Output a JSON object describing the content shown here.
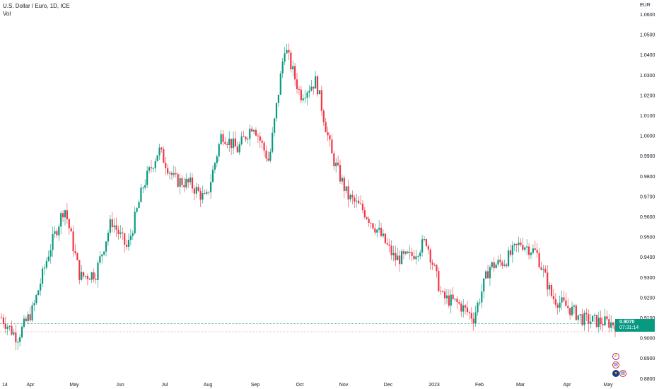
{
  "legend": {
    "title": "U.S. Dollar / Euro, 1D, ICE",
    "indicator": "Vol"
  },
  "axis": {
    "currency": "EUR"
  },
  "price_badge": {
    "price": "0.9070",
    "countdown": "07:31:14"
  },
  "colors": {
    "up": "#089981",
    "down": "#F23645",
    "grid": "#f0f3fa",
    "axis_text": "#131722"
  },
  "events": [
    {
      "icon": "lightning-icon",
      "symbol": "⚡"
    },
    {
      "icon": "us-flag-icon",
      "symbol": "▤"
    },
    {
      "icon": "eu-flag-icon",
      "symbol": "●"
    }
  ],
  "chart_data": {
    "type": "candlestick",
    "title": "U.S. Dollar / Euro, 1D, ICE",
    "ylabel": "EUR",
    "ylim": [
      0.8785,
      1.0655
    ],
    "y_ticks": [
      "1.0600",
      "1.0500",
      "1.0400",
      "1.0300",
      "1.0200",
      "1.0100",
      "1.0000",
      "0.9900",
      "0.9800",
      "0.9700",
      "0.9600",
      "0.9500",
      "0.9400",
      "0.9300",
      "0.9200",
      "0.9100",
      "0.9000",
      "0.8900",
      "0.8800"
    ],
    "x_ticks": [
      "14",
      "Apr",
      "May",
      "Jun",
      "Jul",
      "Aug",
      "Sep",
      "Oct",
      "Nov",
      "Dec",
      "2023",
      "Feb",
      "Mar",
      "Apr",
      "May"
    ],
    "last_price": 0.907,
    "reference_line": 0.903,
    "trend_anchors": [
      [
        "Mar 14",
        0.91
      ],
      [
        "Apr",
        0.9
      ],
      [
        "mid Apr",
        0.914
      ],
      [
        "May",
        0.942
      ],
      [
        "mid May",
        0.965
      ],
      [
        "late May",
        0.93
      ],
      [
        "Jun",
        0.932
      ],
      [
        "mid Jun",
        0.958
      ],
      [
        "late Jun",
        0.944
      ],
      [
        "Jul",
        0.975
      ],
      [
        "mid Jul",
        0.993
      ],
      [
        "late Jul",
        0.978
      ],
      [
        "Aug",
        0.976
      ],
      [
        "mid Aug",
        0.968
      ],
      [
        "late Aug",
        1.001
      ],
      [
        "Sep",
        0.993
      ],
      [
        "mid Sep",
        1.006
      ],
      [
        "late Sep",
        0.987
      ],
      [
        "Oct",
        1.044
      ],
      [
        "mid Oct",
        1.02
      ],
      [
        "late Oct",
        1.027
      ],
      [
        "Nov",
        0.99
      ],
      [
        "mid Nov",
        0.97
      ],
      [
        "late Nov",
        0.963
      ],
      [
        "Dec",
        0.952
      ],
      [
        "mid Dec",
        0.939
      ],
      [
        "late Dec",
        0.94
      ],
      [
        "2023",
        0.948
      ],
      [
        "mid Jan",
        0.92
      ],
      [
        "late Jan",
        0.917
      ],
      [
        "Feb",
        0.91
      ],
      [
        "mid Feb",
        0.935
      ],
      [
        "late Feb",
        0.938
      ],
      [
        "Mar",
        0.947
      ],
      [
        "mid Mar",
        0.942
      ],
      [
        "late Mar",
        0.92
      ],
      [
        "Apr",
        0.915
      ],
      [
        "mid Apr",
        0.909
      ],
      [
        "late Apr",
        0.908
      ],
      [
        "May",
        0.907
      ]
    ]
  }
}
